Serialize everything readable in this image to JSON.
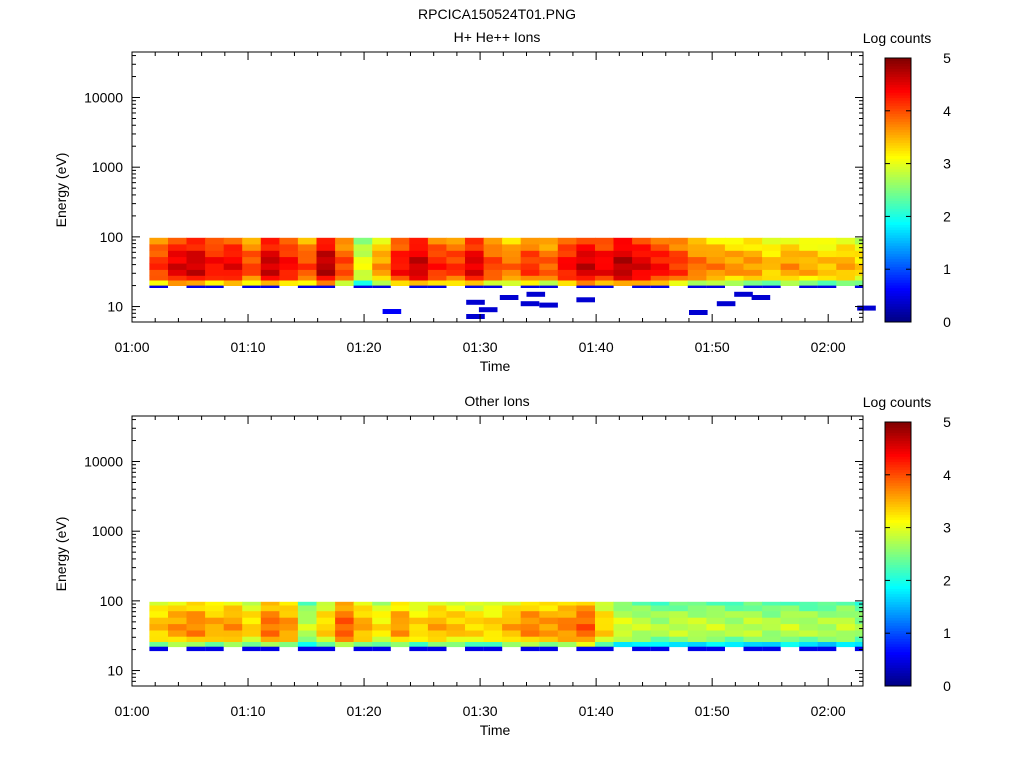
{
  "figure_title": "RPCICA150524T01.PNG",
  "colorbar": {
    "title": "Log counts",
    "ticks": [
      "0",
      "1",
      "2",
      "3",
      "4",
      "5"
    ],
    "range": [
      0,
      5
    ],
    "colormap": "jet"
  },
  "chart_data": [
    {
      "type": "heatmap",
      "title": "H+ He++ Ions",
      "xlabel": "Time",
      "ylabel": "Energy (eV)",
      "y_scale": "log",
      "xlim": [
        "01:00",
        "02:03"
      ],
      "ylim": [
        6,
        45000
      ],
      "x_ticks": [
        "01:00",
        "01:10",
        "01:20",
        "01:30",
        "01:40",
        "01:50",
        "02:00"
      ],
      "y_ticks": [
        "10",
        "100",
        "1000",
        "10000"
      ],
      "time_step_min": 1.6,
      "energy_bins_ev": [
        [
          20,
          24
        ],
        [
          24,
          28
        ],
        [
          28,
          34
        ],
        [
          34,
          42
        ],
        [
          42,
          52
        ],
        [
          52,
          64
        ],
        [
          64,
          79
        ],
        [
          79,
          97
        ]
      ],
      "log_counts": [
        4.1,
        4.5,
        4.6,
        4.3,
        4.4,
        4.0,
        4.6,
        4.3,
        4.0,
        4.7,
        4.0,
        3.0,
        3.6,
        4.3,
        4.6,
        4.2,
        4.1,
        4.5,
        4.0,
        3.8,
        4.1,
        3.9,
        4.3,
        4.6,
        4.4,
        4.7,
        4.5,
        4.3,
        4.1,
        3.8,
        3.7,
        3.6,
        3.6,
        3.4,
        3.6,
        3.5,
        3.4,
        3.5,
        3.3,
        3.6,
        3.4,
        3.5,
        3.3,
        3.4,
        3.3
      ],
      "low_energy_tail": {
        "bin_ev": [
          18.5,
          20
        ],
        "log_counts": 0.5
      },
      "sparse_low_counts": [
        {
          "time": "01:21.6",
          "energy_ev": 8.5,
          "log_counts": 0.6
        },
        {
          "time": "01:28.8",
          "energy_ev": 11.5,
          "log_counts": 0.4
        },
        {
          "time": "01:28.8",
          "energy_ev": 7.2,
          "log_counts": 0.4
        },
        {
          "time": "01:29.9",
          "energy_ev": 9.0,
          "log_counts": 0.4
        },
        {
          "time": "01:31.7",
          "energy_ev": 13.5,
          "log_counts": 0.4
        },
        {
          "time": "01:33.5",
          "energy_ev": 11.0,
          "log_counts": 0.4
        },
        {
          "time": "01:34.0",
          "energy_ev": 15.0,
          "log_counts": 0.4
        },
        {
          "time": "01:35.1",
          "energy_ev": 10.5,
          "log_counts": 0.4
        },
        {
          "time": "01:38.3",
          "energy_ev": 12.5,
          "log_counts": 0.4
        },
        {
          "time": "01:48.0",
          "energy_ev": 8.2,
          "log_counts": 0.4
        },
        {
          "time": "01:50.4",
          "energy_ev": 11.0,
          "log_counts": 0.4
        },
        {
          "time": "01:51.9",
          "energy_ev": 15.0,
          "log_counts": 0.4
        },
        {
          "time": "01:53.4",
          "energy_ev": 13.5,
          "log_counts": 0.4
        },
        {
          "time": "02:02.5",
          "energy_ev": 9.5,
          "log_counts": 0.4
        }
      ]
    },
    {
      "type": "heatmap",
      "title": "Other Ions",
      "xlabel": "Time",
      "ylabel": "Energy (eV)",
      "y_scale": "log",
      "xlim": [
        "01:00",
        "02:03"
      ],
      "ylim": [
        6,
        45000
      ],
      "x_ticks": [
        "01:00",
        "01:10",
        "01:20",
        "01:30",
        "01:40",
        "01:50",
        "02:00"
      ],
      "y_ticks": [
        "10",
        "100",
        "1000",
        "10000"
      ],
      "time_step_min": 1.6,
      "energy_bins_ev": [
        [
          22,
          26
        ],
        [
          26,
          31
        ],
        [
          31,
          38
        ],
        [
          38,
          47
        ],
        [
          47,
          58
        ],
        [
          58,
          72
        ],
        [
          72,
          87
        ],
        [
          87,
          97
        ]
      ],
      "log_counts": [
        3.4,
        3.6,
        3.7,
        3.5,
        3.6,
        3.3,
        3.8,
        3.6,
        2.8,
        3.3,
        3.9,
        3.5,
        3.2,
        3.6,
        3.3,
        3.5,
        3.4,
        3.3,
        3.3,
        3.5,
        3.7,
        3.6,
        3.7,
        3.9,
        3.3,
        2.9,
        2.8,
        2.7,
        2.8,
        2.8,
        2.8,
        2.7,
        2.8,
        2.7,
        2.8,
        2.7,
        2.7,
        2.8,
        2.6,
        2.7,
        2.6,
        2.6,
        2.6,
        2.6,
        2.7
      ],
      "low_energy_tail": {
        "bin_ev": [
          19,
          22
        ],
        "log_counts": 0.5
      },
      "sparse_low_counts": []
    }
  ]
}
